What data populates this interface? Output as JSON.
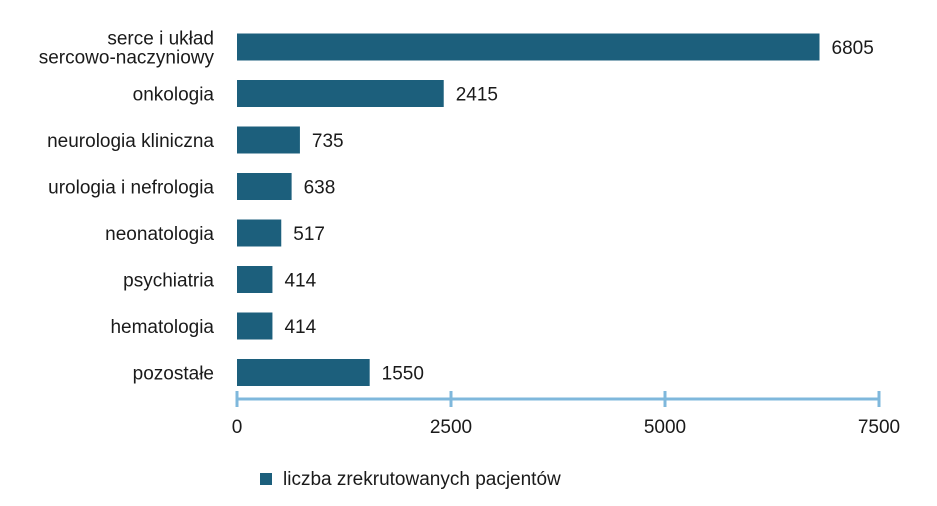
{
  "chart_data": {
    "type": "bar",
    "orientation": "horizontal",
    "categories": [
      [
        "serce i układ",
        "sercowo-naczyniowy"
      ],
      [
        "onkologia"
      ],
      [
        "neurologia kliniczna"
      ],
      [
        "urologia i nefrologia"
      ],
      [
        "neonatologia"
      ],
      [
        "psychiatria"
      ],
      [
        "hematologia"
      ],
      [
        "pozostałe"
      ]
    ],
    "series": [
      {
        "name": "liczba zrekrutowanych pacjentów",
        "values": [
          6805,
          2415,
          735,
          638,
          517,
          414,
          414,
          1550
        ]
      }
    ],
    "xlim": [
      0,
      7500
    ],
    "xticks": [
      0,
      2500,
      5000,
      7500
    ],
    "grid": false,
    "data_labels": true,
    "legend_position": "bottom",
    "colors": {
      "bar": "#1c5f7c",
      "axis": "#7fb8dc"
    }
  }
}
